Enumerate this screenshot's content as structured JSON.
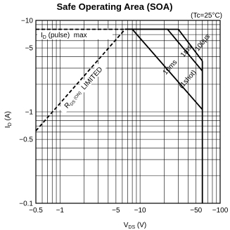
{
  "chart_data": {
    "type": "line",
    "title": "Safe Operating Area (SOA)",
    "condition": "(Tc=25°C)",
    "xlabel": "VDS (V)",
    "ylabel": "ID (A)",
    "x_scale": "log",
    "y_scale": "log",
    "xlim": [
      0.5,
      100
    ],
    "ylim": [
      0.1,
      10
    ],
    "x_ticks": [
      {
        "value": 0.5,
        "label": "−0.5"
      },
      {
        "value": 1,
        "label": "−1"
      },
      {
        "value": 5,
        "label": "−5"
      },
      {
        "value": 10,
        "label": "−10"
      },
      {
        "value": 50,
        "label": "−50"
      },
      {
        "value": 100,
        "label": "−100"
      }
    ],
    "y_ticks": [
      {
        "value": 10,
        "label": "−10"
      },
      {
        "value": 5,
        "label": "−5"
      },
      {
        "value": 1,
        "label": "−1"
      },
      {
        "value": 0.5,
        "label": "−0.5"
      },
      {
        "value": 0.1,
        "label": "−0.1"
      }
    ],
    "grid": true,
    "series": [
      {
        "name": "ID (pulse) max",
        "style": "dashed",
        "x": [
          0.5,
          6.5
        ],
        "y": [
          8,
          8
        ]
      },
      {
        "name": "RDS (ON) LIMITED",
        "style": "dashed",
        "x": [
          0.5,
          6.5
        ],
        "y": [
          0.62,
          8
        ]
      },
      {
        "name": "100μs",
        "style": "solid",
        "x": [
          6.5,
          30,
          60
        ],
        "y": [
          8,
          8,
          3.6
        ]
      },
      {
        "name": "1ms",
        "style": "solid",
        "x": [
          6.5,
          22,
          60
        ],
        "y": [
          8,
          8,
          2.8
        ]
      },
      {
        "name": "10ms",
        "style": "solid",
        "x": [
          6.5,
          8,
          60
        ],
        "y": [
          8,
          8,
          1.06
        ]
      },
      {
        "name": "(1shot)",
        "style": "solid",
        "x": [
          60,
          60
        ],
        "y": [
          3.6,
          0.1
        ]
      }
    ],
    "annotations": {
      "pulse_max": "ID (pulse) max",
      "rds_limited": "RDS (ON) LIMITED",
      "l100us": "100μs",
      "l1ms": "1ms",
      "l10ms": "10ms",
      "l1shot": "(1shot)"
    },
    "axis_colors": {
      "line": "#000000",
      "grid": "#000000"
    }
  }
}
